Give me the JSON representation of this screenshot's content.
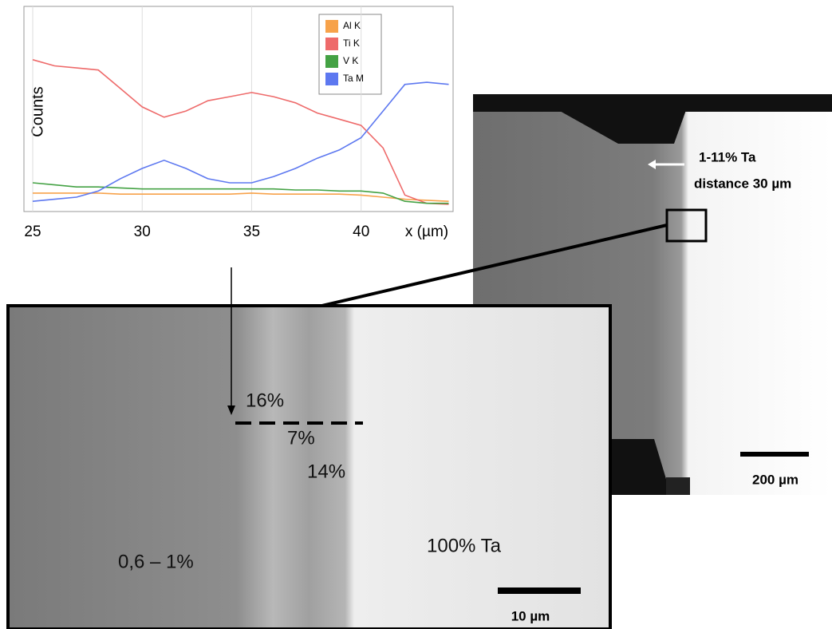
{
  "chart_data": {
    "type": "line",
    "y_label": "Counts",
    "x_label": "x (µm)",
    "x": [
      25,
      26,
      27,
      28,
      29,
      30,
      31,
      32,
      33,
      34,
      35,
      36,
      37,
      38,
      39,
      40,
      41,
      42,
      43,
      44
    ],
    "xlim": [
      24.6,
      44.2
    ],
    "xticks": [
      25,
      30,
      35,
      40
    ],
    "ylim": [
      0,
      100
    ],
    "grid": true,
    "series": [
      {
        "name": "Al K",
        "color": "#f7a24a",
        "values": [
          9,
          9,
          9,
          9,
          8.5,
          8.5,
          8.5,
          8.5,
          8.5,
          8.5,
          9,
          8.5,
          8.5,
          8.5,
          8.5,
          8,
          7,
          6,
          5.5,
          5
        ]
      },
      {
        "name": "Ti K",
        "color": "#ee6a6a",
        "values": [
          74,
          71,
          70,
          69,
          60,
          51,
          46,
          49,
          54,
          56,
          58,
          56,
          53,
          48,
          45,
          42,
          31,
          8,
          4,
          3.5
        ]
      },
      {
        "name": "V K",
        "color": "#44a244",
        "values": [
          14,
          13,
          12,
          12,
          11.5,
          11,
          11,
          11,
          11,
          11,
          11,
          11,
          10.5,
          10.5,
          10,
          10,
          9,
          5,
          4,
          4
        ]
      },
      {
        "name": "Ta M",
        "color": "#5d78f0",
        "values": [
          5,
          6,
          7,
          10,
          16,
          21,
          25,
          21,
          16,
          14,
          14,
          17,
          21,
          26,
          30,
          36,
          49,
          62,
          63,
          62
        ]
      }
    ]
  },
  "overview": {
    "label_ta": "1-11%  Ta",
    "label_distance": "distance 30 µm",
    "scale": "200 µm"
  },
  "detail": {
    "label_16": "16%",
    "label_7": "7%",
    "label_14": "14%",
    "label_low": "0,6 – 1%",
    "label_ta": "100% Ta",
    "scale": "10 µm"
  }
}
